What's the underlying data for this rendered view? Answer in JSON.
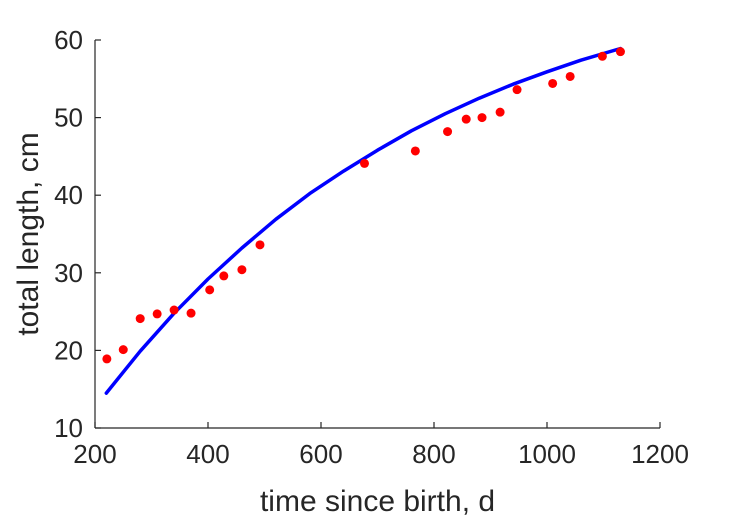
{
  "chart_data": {
    "type": "scatter",
    "xlabel": "time since birth, d",
    "ylabel": "total length, cm",
    "xlim": [
      200,
      1200
    ],
    "ylim": [
      10,
      60
    ],
    "xticks": [
      "200",
      "400",
      "600",
      "800",
      "1000",
      "1200"
    ],
    "yticks": [
      "10",
      "20",
      "30",
      "40",
      "50",
      "60"
    ],
    "grid": false,
    "colors": {
      "points": "#ff0000",
      "fit": "#0000ff",
      "axis": "#262626"
    },
    "series": [
      {
        "kind": "points",
        "x": [
          221,
          250,
          280,
          310,
          340,
          370,
          403,
          428,
          460,
          492,
          677,
          767,
          824,
          857,
          885,
          917,
          947,
          1010,
          1041,
          1098,
          1130
        ],
        "y": [
          18.9,
          20.1,
          24.1,
          24.7,
          25.2,
          24.8,
          27.8,
          29.6,
          30.4,
          33.6,
          44.1,
          45.7,
          48.2,
          49.8,
          50.0,
          50.7,
          53.6,
          54.4,
          55.3,
          57.9,
          58.5
        ]
      },
      {
        "kind": "fit",
        "x": [
          220,
          280,
          340,
          400,
          460,
          520,
          580,
          640,
          700,
          760,
          820,
          880,
          940,
          1000,
          1060,
          1130
        ],
        "y": [
          14.5,
          19.9,
          24.8,
          29.2,
          33.2,
          36.9,
          40.2,
          43.1,
          45.8,
          48.3,
          50.5,
          52.5,
          54.3,
          55.9,
          57.4,
          58.9
        ]
      }
    ]
  }
}
